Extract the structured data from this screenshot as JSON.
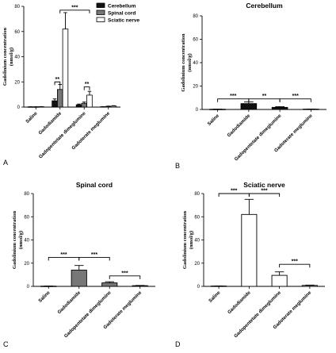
{
  "chart_data": [
    {
      "type": "bar",
      "panel_letter": "A",
      "title": "",
      "ylabel": "Gadolinium concentration\n(nmol/g)",
      "categories": [
        "Saline",
        "Gadodiamide",
        "Gadopentetate dimeglumine",
        "Gadoterate meglumine"
      ],
      "series": [
        {
          "name": "Cerebellum",
          "values": [
            0.2,
            5.0,
            1.8,
            0.3
          ],
          "errors": [
            0.1,
            1.5,
            0.6,
            0.1
          ],
          "color": "#111111"
        },
        {
          "name": "Spinal cord",
          "values": [
            0.2,
            14.0,
            3.0,
            0.6
          ],
          "errors": [
            0.1,
            4.0,
            1.0,
            0.2
          ],
          "color": "#777777"
        },
        {
          "name": "Sciatic nerve",
          "values": [
            0.3,
            62.0,
            9.5,
            0.8
          ],
          "errors": [
            0.1,
            13.0,
            3.0,
            0.3
          ],
          "color": "#ffffff"
        }
      ],
      "yticks": [
        0,
        20,
        40,
        60,
        80
      ],
      "ylim": [
        0,
        80
      ],
      "legend_position": "top-right",
      "annotations": [
        {
          "text": "***",
          "from": 1,
          "to": 2,
          "series_from": 1,
          "series_to": 2,
          "level": 77
        },
        {
          "text": "**",
          "from": 1,
          "to": 1,
          "series_from": 0,
          "series_to": 1,
          "level": 20
        },
        {
          "text": "**",
          "from": 2,
          "to": 2,
          "series_from": 1,
          "series_to": 2,
          "level": 16
        }
      ]
    },
    {
      "type": "bar",
      "panel_letter": "B",
      "title": "Cerebellum",
      "ylabel": "Gadolinium concentration\n(nmol/g)",
      "categories": [
        "Saline",
        "Gadodiamide",
        "Gadopentetate dimeglumine",
        "Gadoterate meglumine"
      ],
      "values": [
        0.2,
        5.0,
        1.8,
        0.3
      ],
      "errors": [
        0.1,
        1.5,
        0.6,
        0.1
      ],
      "fill": "#111111",
      "yticks": [
        0,
        20,
        40,
        60,
        80
      ],
      "ylim": [
        0,
        80
      ],
      "annotations": [
        {
          "text": "***",
          "from": 0,
          "to": 1,
          "level": 9
        },
        {
          "text": "**",
          "from": 1,
          "to": 2,
          "level": 9
        },
        {
          "text": "***",
          "from": 2,
          "to": 3,
          "level": 9
        }
      ]
    },
    {
      "type": "bar",
      "panel_letter": "C",
      "title": "Spinal cord",
      "ylabel": "Gadolinium concentration\n(nmol/g)",
      "categories": [
        "Saline",
        "Gadodiamide",
        "Gadopentetate dimeglumine",
        "Gadoterate meglumine"
      ],
      "values": [
        0.2,
        14.0,
        3.0,
        0.6
      ],
      "errors": [
        0.1,
        4.0,
        1.0,
        0.2
      ],
      "fill": "#777777",
      "yticks": [
        0,
        20,
        40,
        60,
        80
      ],
      "ylim": [
        0,
        80
      ],
      "annotations": [
        {
          "text": "***",
          "from": 0,
          "to": 1,
          "level": 25
        },
        {
          "text": "***",
          "from": 1,
          "to": 2,
          "level": 25
        },
        {
          "text": "***",
          "from": 2,
          "to": 3,
          "level": 9
        }
      ]
    },
    {
      "type": "bar",
      "panel_letter": "D",
      "title": "Sciatic nerve",
      "ylabel": "Gadolinium concentration\n(nmol/g)",
      "categories": [
        "Saline",
        "Gadodiamide",
        "Gadopentetate dimeglumine",
        "Gadoterate meglumine"
      ],
      "values": [
        0.3,
        62.0,
        9.5,
        0.8
      ],
      "errors": [
        0.1,
        13.0,
        3.0,
        0.3
      ],
      "fill": "#ffffff",
      "yticks": [
        0,
        20,
        40,
        60,
        80
      ],
      "ylim": [
        0,
        80
      ],
      "annotations": [
        {
          "text": "***",
          "from": 0,
          "to": 1,
          "level": 80
        },
        {
          "text": "***",
          "from": 1,
          "to": 2,
          "level": 80
        },
        {
          "text": "***",
          "from": 2,
          "to": 3,
          "level": 19
        }
      ]
    }
  ]
}
